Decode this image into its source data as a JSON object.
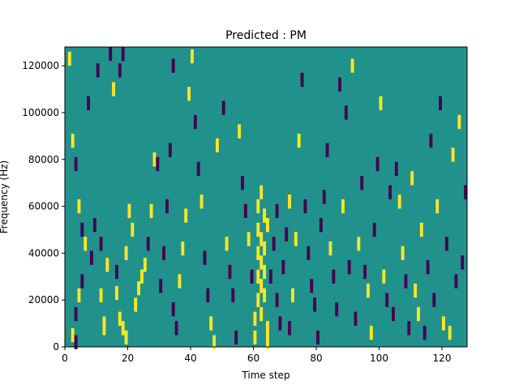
{
  "chart_data": {
    "type": "heatmap",
    "title": "Predicted : PM",
    "xlabel": "Time step",
    "ylabel": "Frequency (Hz)",
    "xlim": [
      0,
      128
    ],
    "ylim": [
      0,
      128000
    ],
    "x_ticks": [
      0,
      20,
      40,
      60,
      80,
      100,
      120
    ],
    "y_ticks": [
      0,
      20000,
      40000,
      60000,
      80000,
      100000,
      120000
    ],
    "x_tick_labels": [
      "0",
      "20",
      "40",
      "60",
      "80",
      "100",
      "120"
    ],
    "y_tick_labels": [
      "0",
      "20000",
      "40000",
      "60000",
      "80000",
      "100000",
      "120000"
    ],
    "colormap": "viridis",
    "background_value": 0.5,
    "grid": false,
    "legend": "none",
    "colors": {
      "low": "#440154",
      "mid": "#21918c",
      "high": "#fde725"
    },
    "cells": [
      {
        "t": 1,
        "f": 123000,
        "v": 1
      },
      {
        "t": 2,
        "f": 88000,
        "v": 1
      },
      {
        "t": 3,
        "f": 78000,
        "v": 0
      },
      {
        "t": 4,
        "f": 60000,
        "v": 1
      },
      {
        "t": 5,
        "f": 50000,
        "v": 0
      },
      {
        "t": 6,
        "f": 44000,
        "v": 1
      },
      {
        "t": 5,
        "f": 28000,
        "v": 0
      },
      {
        "t": 4,
        "f": 22000,
        "v": 1
      },
      {
        "t": 3,
        "f": 14000,
        "v": 0
      },
      {
        "t": 2,
        "f": 5000,
        "v": 1
      },
      {
        "t": 3,
        "f": 2000,
        "v": 0
      },
      {
        "t": 7,
        "f": 104000,
        "v": 0
      },
      {
        "t": 8,
        "f": 38000,
        "v": 0
      },
      {
        "t": 9,
        "f": 52000,
        "v": 0
      },
      {
        "t": 10,
        "f": 118000,
        "v": 0
      },
      {
        "t": 11,
        "f": 22000,
        "v": 1
      },
      {
        "t": 12,
        "f": 10000,
        "v": 1
      },
      {
        "t": 13,
        "f": 35000,
        "v": 1
      },
      {
        "t": 11,
        "f": 44000,
        "v": 0
      },
      {
        "t": 12,
        "f": 8000,
        "v": 1
      },
      {
        "t": 14,
        "f": 125000,
        "v": 0
      },
      {
        "t": 15,
        "f": 110000,
        "v": 1
      },
      {
        "t": 17,
        "f": 118000,
        "v": 0
      },
      {
        "t": 18,
        "f": 125000,
        "v": 0
      },
      {
        "t": 16,
        "f": 32000,
        "v": 0
      },
      {
        "t": 16,
        "f": 23000,
        "v": 1
      },
      {
        "t": 17,
        "f": 12000,
        "v": 1
      },
      {
        "t": 18,
        "f": 8000,
        "v": 1
      },
      {
        "t": 19,
        "f": 4000,
        "v": 1
      },
      {
        "t": 19,
        "f": 40000,
        "v": 1
      },
      {
        "t": 20,
        "f": 58000,
        "v": 1
      },
      {
        "t": 21,
        "f": 50000,
        "v": 1
      },
      {
        "t": 22,
        "f": 18000,
        "v": 1
      },
      {
        "t": 23,
        "f": 25000,
        "v": 1
      },
      {
        "t": 24,
        "f": 30000,
        "v": 1
      },
      {
        "t": 25,
        "f": 35000,
        "v": 1
      },
      {
        "t": 26,
        "f": 44000,
        "v": 0
      },
      {
        "t": 27,
        "f": 58000,
        "v": 1
      },
      {
        "t": 28,
        "f": 80000,
        "v": 1
      },
      {
        "t": 29,
        "f": 78000,
        "v": 0
      },
      {
        "t": 30,
        "f": 26000,
        "v": 0
      },
      {
        "t": 31,
        "f": 40000,
        "v": 0
      },
      {
        "t": 32,
        "f": 60000,
        "v": 0
      },
      {
        "t": 33,
        "f": 84000,
        "v": 0
      },
      {
        "t": 34,
        "f": 120000,
        "v": 0
      },
      {
        "t": 34,
        "f": 16000,
        "v": 0
      },
      {
        "t": 35,
        "f": 8000,
        "v": 0
      },
      {
        "t": 36,
        "f": 28000,
        "v": 1
      },
      {
        "t": 37,
        "f": 42000,
        "v": 1
      },
      {
        "t": 38,
        "f": 56000,
        "v": 1
      },
      {
        "t": 39,
        "f": 108000,
        "v": 1
      },
      {
        "t": 40,
        "f": 124000,
        "v": 1
      },
      {
        "t": 41,
        "f": 96000,
        "v": 0
      },
      {
        "t": 42,
        "f": 76000,
        "v": 0
      },
      {
        "t": 43,
        "f": 62000,
        "v": 1
      },
      {
        "t": 44,
        "f": 38000,
        "v": 0
      },
      {
        "t": 45,
        "f": 22000,
        "v": 0
      },
      {
        "t": 46,
        "f": 10000,
        "v": 1
      },
      {
        "t": 47,
        "f": 2000,
        "v": 1
      },
      {
        "t": 48,
        "f": 86000,
        "v": 1
      },
      {
        "t": 50,
        "f": 102000,
        "v": 0
      },
      {
        "t": 51,
        "f": 44000,
        "v": 1
      },
      {
        "t": 52,
        "f": 32000,
        "v": 0
      },
      {
        "t": 53,
        "f": 22000,
        "v": 0
      },
      {
        "t": 54,
        "f": 4000,
        "v": 0
      },
      {
        "t": 55,
        "f": 92000,
        "v": 1
      },
      {
        "t": 56,
        "f": 70000,
        "v": 0
      },
      {
        "t": 57,
        "f": 58000,
        "v": 0
      },
      {
        "t": 58,
        "f": 46000,
        "v": 1
      },
      {
        "t": 59,
        "f": 30000,
        "v": 0
      },
      {
        "t": 60,
        "f": 4000,
        "v": 1
      },
      {
        "t": 60,
        "f": 12000,
        "v": 1
      },
      {
        "t": 61,
        "f": 20000,
        "v": 1
      },
      {
        "t": 61,
        "f": 30000,
        "v": 1
      },
      {
        "t": 61,
        "f": 40000,
        "v": 1
      },
      {
        "t": 61,
        "f": 50000,
        "v": 1
      },
      {
        "t": 61,
        "f": 60000,
        "v": 1
      },
      {
        "t": 62,
        "f": 66000,
        "v": 1
      },
      {
        "t": 62,
        "f": 14000,
        "v": 1
      },
      {
        "t": 62,
        "f": 26000,
        "v": 1
      },
      {
        "t": 62,
        "f": 36000,
        "v": 1
      },
      {
        "t": 62,
        "f": 46000,
        "v": 1
      },
      {
        "t": 63,
        "f": 56000,
        "v": 1
      },
      {
        "t": 63,
        "f": 42000,
        "v": 1
      },
      {
        "t": 63,
        "f": 32000,
        "v": 1
      },
      {
        "t": 63,
        "f": 22000,
        "v": 1
      },
      {
        "t": 64,
        "f": 8000,
        "v": 1
      },
      {
        "t": 64,
        "f": 2000,
        "v": 1
      },
      {
        "t": 64,
        "f": 52000,
        "v": 1
      },
      {
        "t": 65,
        "f": 30000,
        "v": 0
      },
      {
        "t": 66,
        "f": 44000,
        "v": 0
      },
      {
        "t": 67,
        "f": 58000,
        "v": 0
      },
      {
        "t": 67,
        "f": 20000,
        "v": 0
      },
      {
        "t": 68,
        "f": 10000,
        "v": 0
      },
      {
        "t": 69,
        "f": 34000,
        "v": 0
      },
      {
        "t": 70,
        "f": 48000,
        "v": 0
      },
      {
        "t": 71,
        "f": 62000,
        "v": 1
      },
      {
        "t": 71,
        "f": 8000,
        "v": 0
      },
      {
        "t": 72,
        "f": 22000,
        "v": 1
      },
      {
        "t": 73,
        "f": 46000,
        "v": 1
      },
      {
        "t": 74,
        "f": 88000,
        "v": 1
      },
      {
        "t": 75,
        "f": 114000,
        "v": 0
      },
      {
        "t": 76,
        "f": 60000,
        "v": 0
      },
      {
        "t": 77,
        "f": 40000,
        "v": 0
      },
      {
        "t": 78,
        "f": 26000,
        "v": 0
      },
      {
        "t": 79,
        "f": 18000,
        "v": 0
      },
      {
        "t": 80,
        "f": 4000,
        "v": 0
      },
      {
        "t": 81,
        "f": 52000,
        "v": 0
      },
      {
        "t": 82,
        "f": 64000,
        "v": 0
      },
      {
        "t": 83,
        "f": 84000,
        "v": 0
      },
      {
        "t": 84,
        "f": 42000,
        "v": 1
      },
      {
        "t": 85,
        "f": 30000,
        "v": 0
      },
      {
        "t": 86,
        "f": 16000,
        "v": 0
      },
      {
        "t": 87,
        "f": 112000,
        "v": 0
      },
      {
        "t": 88,
        "f": 60000,
        "v": 1
      },
      {
        "t": 89,
        "f": 100000,
        "v": 0
      },
      {
        "t": 90,
        "f": 34000,
        "v": 0
      },
      {
        "t": 91,
        "f": 120000,
        "v": 1
      },
      {
        "t": 92,
        "f": 12000,
        "v": 0
      },
      {
        "t": 93,
        "f": 44000,
        "v": 1
      },
      {
        "t": 94,
        "f": 70000,
        "v": 0
      },
      {
        "t": 95,
        "f": 32000,
        "v": 0
      },
      {
        "t": 96,
        "f": 24000,
        "v": 1
      },
      {
        "t": 97,
        "f": 6000,
        "v": 1
      },
      {
        "t": 98,
        "f": 50000,
        "v": 0
      },
      {
        "t": 99,
        "f": 78000,
        "v": 0
      },
      {
        "t": 100,
        "f": 104000,
        "v": 1
      },
      {
        "t": 101,
        "f": 30000,
        "v": 1
      },
      {
        "t": 102,
        "f": 20000,
        "v": 0
      },
      {
        "t": 103,
        "f": 66000,
        "v": 0
      },
      {
        "t": 104,
        "f": 14000,
        "v": 0
      },
      {
        "t": 105,
        "f": 76000,
        "v": 0
      },
      {
        "t": 106,
        "f": 62000,
        "v": 1
      },
      {
        "t": 107,
        "f": 40000,
        "v": 1
      },
      {
        "t": 108,
        "f": 28000,
        "v": 0
      },
      {
        "t": 109,
        "f": 8000,
        "v": 0
      },
      {
        "t": 110,
        "f": 72000,
        "v": 1
      },
      {
        "t": 111,
        "f": 24000,
        "v": 1
      },
      {
        "t": 112,
        "f": 14000,
        "v": 1
      },
      {
        "t": 113,
        "f": 50000,
        "v": 1
      },
      {
        "t": 114,
        "f": 6000,
        "v": 0
      },
      {
        "t": 115,
        "f": 34000,
        "v": 0
      },
      {
        "t": 116,
        "f": 88000,
        "v": 0
      },
      {
        "t": 117,
        "f": 20000,
        "v": 0
      },
      {
        "t": 118,
        "f": 60000,
        "v": 1
      },
      {
        "t": 119,
        "f": 104000,
        "v": 0
      },
      {
        "t": 120,
        "f": 10000,
        "v": 1
      },
      {
        "t": 121,
        "f": 44000,
        "v": 0
      },
      {
        "t": 122,
        "f": 6000,
        "v": 1
      },
      {
        "t": 123,
        "f": 82000,
        "v": 1
      },
      {
        "t": 124,
        "f": 28000,
        "v": 0
      },
      {
        "t": 125,
        "f": 96000,
        "v": 1
      },
      {
        "t": 126,
        "f": 36000,
        "v": 0
      },
      {
        "t": 127,
        "f": 66000,
        "v": 0
      }
    ]
  }
}
